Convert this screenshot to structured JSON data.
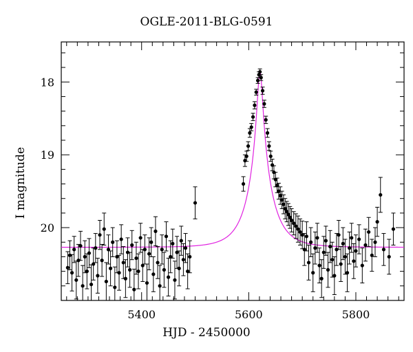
{
  "chart_data": {
    "type": "scatter",
    "title": "OGLE-2011-BLG-0591",
    "xlabel": "HJD - 2450000",
    "ylabel": "I magnitude",
    "xlim": [
      5250,
      5890
    ],
    "ylim": [
      21.0,
      17.45
    ],
    "y_inverted": true,
    "x_ticks": [
      5400,
      5600,
      5800
    ],
    "y_ticks": [
      18,
      19,
      20
    ],
    "grid": false,
    "legend": "none",
    "colors": {
      "data": "#000000",
      "model": "#e020e0",
      "frame": "#000000"
    },
    "model": {
      "name": "",
      "type": "microlensing-fit",
      "t0": 5621,
      "baseline_mag": 20.27,
      "peak_mag": 17.85,
      "tE": 42
    },
    "series": [
      {
        "name": "",
        "points": [
          [
            5262,
            20.55,
            0.22
          ],
          [
            5266,
            20.38,
            0.2
          ],
          [
            5270,
            20.62,
            0.25
          ],
          [
            5274,
            20.3,
            0.18
          ],
          [
            5278,
            20.72,
            0.26
          ],
          [
            5282,
            20.45,
            0.22
          ],
          [
            5286,
            20.25,
            0.2
          ],
          [
            5290,
            20.8,
            0.28
          ],
          [
            5294,
            20.4,
            0.22
          ],
          [
            5298,
            20.6,
            0.24
          ],
          [
            5302,
            20.35,
            0.2
          ],
          [
            5306,
            20.78,
            0.27
          ],
          [
            5310,
            20.5,
            0.22
          ],
          [
            5314,
            20.28,
            0.2
          ],
          [
            5318,
            20.66,
            0.24
          ],
          [
            5322,
            20.1,
            0.2
          ],
          [
            5326,
            20.45,
            0.22
          ],
          [
            5330,
            20.02,
            0.22
          ],
          [
            5334,
            20.74,
            0.26
          ],
          [
            5338,
            20.3,
            0.2
          ],
          [
            5342,
            20.56,
            0.24
          ],
          [
            5346,
            20.2,
            0.2
          ],
          [
            5350,
            20.82,
            0.28
          ],
          [
            5354,
            20.4,
            0.22
          ],
          [
            5358,
            20.62,
            0.24
          ],
          [
            5362,
            20.16,
            0.2
          ],
          [
            5366,
            20.48,
            0.22
          ],
          [
            5370,
            20.7,
            0.26
          ],
          [
            5374,
            20.34,
            0.2
          ],
          [
            5378,
            20.58,
            0.24
          ],
          [
            5382,
            20.24,
            0.2
          ],
          [
            5386,
            20.85,
            0.28
          ],
          [
            5390,
            20.42,
            0.22
          ],
          [
            5394,
            20.6,
            0.24
          ],
          [
            5398,
            20.14,
            0.2
          ],
          [
            5402,
            20.52,
            0.22
          ],
          [
            5406,
            20.3,
            0.2
          ],
          [
            5410,
            20.76,
            0.26
          ],
          [
            5414,
            20.36,
            0.22
          ],
          [
            5418,
            20.2,
            0.2
          ],
          [
            5422,
            20.64,
            0.24
          ],
          [
            5426,
            20.05,
            0.2
          ],
          [
            5430,
            20.48,
            0.22
          ],
          [
            5434,
            20.8,
            0.28
          ],
          [
            5438,
            20.3,
            0.2
          ],
          [
            5442,
            20.58,
            0.24
          ],
          [
            5446,
            20.12,
            0.2
          ],
          [
            5450,
            20.68,
            0.26
          ],
          [
            5454,
            20.4,
            0.22
          ],
          [
            5458,
            20.22,
            0.2
          ],
          [
            5462,
            20.72,
            0.26
          ],
          [
            5466,
            20.34,
            0.22
          ],
          [
            5470,
            20.56,
            0.24
          ],
          [
            5474,
            20.18,
            0.2
          ],
          [
            5478,
            20.44,
            0.22
          ],
          [
            5482,
            20.28,
            0.2
          ],
          [
            5486,
            20.6,
            0.24
          ],
          [
            5490,
            20.4,
            0.22
          ],
          [
            5500,
            19.66,
            0.22
          ],
          [
            5590,
            19.4,
            0.1
          ],
          [
            5593,
            19.08,
            0.08
          ],
          [
            5596,
            19.02,
            0.07
          ],
          [
            5599,
            18.88,
            0.06
          ],
          [
            5602,
            18.7,
            0.06
          ],
          [
            5605,
            18.62,
            0.05
          ],
          [
            5608,
            18.48,
            0.05
          ],
          [
            5611,
            18.32,
            0.05
          ],
          [
            5614,
            18.14,
            0.04
          ],
          [
            5617,
            17.98,
            0.04
          ],
          [
            5619,
            17.9,
            0.04
          ],
          [
            5621,
            17.86,
            0.04
          ],
          [
            5623,
            17.94,
            0.04
          ],
          [
            5626,
            18.12,
            0.05
          ],
          [
            5629,
            18.3,
            0.05
          ],
          [
            5632,
            18.52,
            0.05
          ],
          [
            5635,
            18.7,
            0.06
          ],
          [
            5638,
            18.88,
            0.06
          ],
          [
            5641,
            19.02,
            0.07
          ],
          [
            5644,
            19.14,
            0.08
          ],
          [
            5647,
            19.24,
            0.09
          ],
          [
            5650,
            19.34,
            0.1
          ],
          [
            5653,
            19.42,
            0.1
          ],
          [
            5656,
            19.5,
            0.11
          ],
          [
            5659,
            19.56,
            0.12
          ],
          [
            5662,
            19.62,
            0.12
          ],
          [
            5665,
            19.68,
            0.13
          ],
          [
            5668,
            19.74,
            0.14
          ],
          [
            5671,
            19.78,
            0.14
          ],
          [
            5674,
            19.82,
            0.15
          ],
          [
            5677,
            19.86,
            0.15
          ],
          [
            5680,
            19.9,
            0.16
          ],
          [
            5684,
            19.94,
            0.16
          ],
          [
            5688,
            19.98,
            0.17
          ],
          [
            5692,
            20.02,
            0.18
          ],
          [
            5696,
            20.06,
            0.18
          ],
          [
            5700,
            20.1,
            0.19
          ],
          [
            5704,
            20.3,
            0.22
          ],
          [
            5708,
            20.12,
            0.2
          ],
          [
            5712,
            20.48,
            0.24
          ],
          [
            5716,
            20.2,
            0.2
          ],
          [
            5720,
            20.62,
            0.26
          ],
          [
            5724,
            20.28,
            0.22
          ],
          [
            5728,
            20.14,
            0.2
          ],
          [
            5732,
            20.52,
            0.24
          ],
          [
            5736,
            20.7,
            0.26
          ],
          [
            5740,
            20.34,
            0.22
          ],
          [
            5744,
            20.18,
            0.2
          ],
          [
            5748,
            20.58,
            0.24
          ],
          [
            5752,
            20.26,
            0.22
          ],
          [
            5756,
            20.44,
            0.24
          ],
          [
            5760,
            20.66,
            0.26
          ],
          [
            5764,
            20.3,
            0.22
          ],
          [
            5768,
            20.1,
            0.2
          ],
          [
            5772,
            20.5,
            0.24
          ],
          [
            5776,
            20.22,
            0.22
          ],
          [
            5780,
            20.4,
            0.24
          ],
          [
            5784,
            20.62,
            0.26
          ],
          [
            5788,
            20.28,
            0.22
          ],
          [
            5792,
            20.14,
            0.2
          ],
          [
            5796,
            20.46,
            0.24
          ],
          [
            5800,
            20.32,
            0.22
          ],
          [
            5806,
            20.16,
            0.2
          ],
          [
            5812,
            20.52,
            0.24
          ],
          [
            5818,
            20.24,
            0.22
          ],
          [
            5824,
            20.06,
            0.2
          ],
          [
            5830,
            20.38,
            0.22
          ],
          [
            5836,
            20.2,
            0.2
          ],
          [
            5840,
            19.92,
            0.2
          ],
          [
            5846,
            19.55,
            0.24
          ],
          [
            5852,
            20.3,
            0.22
          ],
          [
            5862,
            20.4,
            0.24
          ],
          [
            5870,
            20.02,
            0.22
          ]
        ]
      }
    ]
  }
}
